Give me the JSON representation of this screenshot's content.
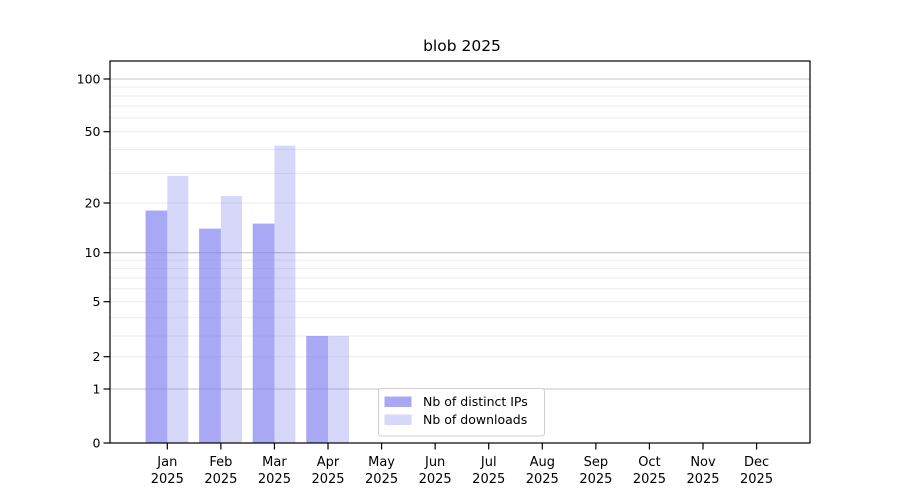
{
  "title": "blob 2025",
  "chart_data": {
    "type": "bar",
    "title": "blob 2025",
    "categories": [
      {
        "month": "Jan",
        "year": "2025"
      },
      {
        "month": "Feb",
        "year": "2025"
      },
      {
        "month": "Mar",
        "year": "2025"
      },
      {
        "month": "Apr",
        "year": "2025"
      },
      {
        "month": "May",
        "year": "2025"
      },
      {
        "month": "Jun",
        "year": "2025"
      },
      {
        "month": "Jul",
        "year": "2025"
      },
      {
        "month": "Aug",
        "year": "2025"
      },
      {
        "month": "Sep",
        "year": "2025"
      },
      {
        "month": "Oct",
        "year": "2025"
      },
      {
        "month": "Nov",
        "year": "2025"
      },
      {
        "month": "Dec",
        "year": "2025"
      }
    ],
    "series": [
      {
        "name": "Nb of distinct IPs",
        "color": "#7f7fef",
        "opacity": 0.68,
        "values": [
          18,
          14,
          15,
          3,
          null,
          null,
          null,
          null,
          null,
          null,
          null,
          null
        ]
      },
      {
        "name": "Nb of downloads",
        "color": "#7f7fef",
        "opacity": 0.31,
        "values": [
          29,
          22,
          42,
          3,
          null,
          null,
          null,
          null,
          null,
          null,
          null,
          null
        ]
      }
    ],
    "yaxis": {
      "scale": "quasi-log",
      "ticks": [
        0,
        1,
        2,
        5,
        10,
        20,
        50,
        100
      ],
      "minor_gridlines": [
        2,
        3,
        4,
        5,
        6,
        7,
        8,
        9,
        20,
        30,
        40,
        50,
        60,
        70,
        80,
        90
      ],
      "major_gridlines": [
        1,
        10,
        100
      ]
    },
    "xlabel": "",
    "ylabel": "",
    "grid": true,
    "legend_position": "lower-center",
    "colors": {
      "major_grid": "#c3c3c3",
      "minor_grid": "#ececec",
      "spine": "#000000",
      "legend_border": "#cfcfcf",
      "background": "#ffffff"
    }
  }
}
